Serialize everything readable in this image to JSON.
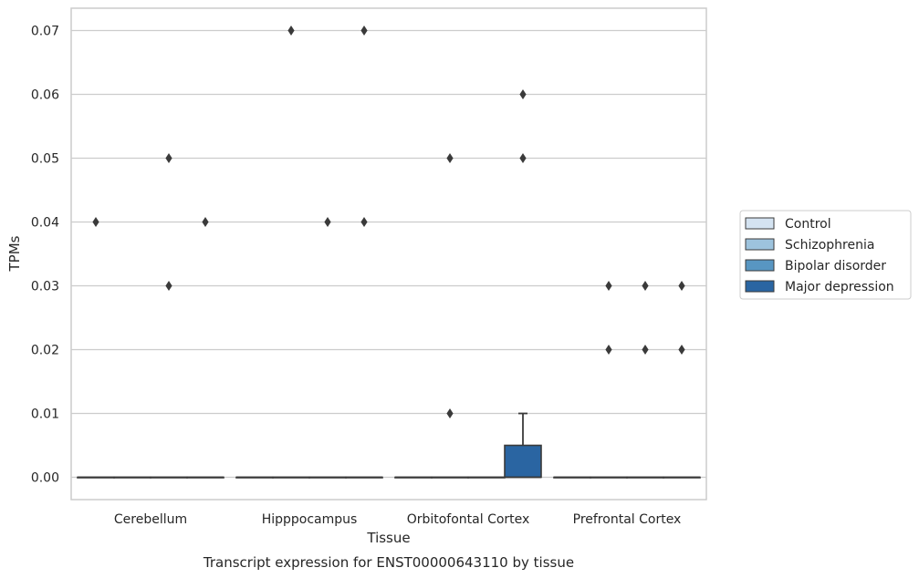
{
  "caption": "Transcript expression for ENST00000643110 by tissue",
  "chart_data": {
    "type": "box",
    "title": "",
    "xlabel": "Tissue",
    "ylabel": "TPMs",
    "ylim": [
      -0.0035,
      0.0735
    ],
    "yticks": [
      "0.00",
      "0.01",
      "0.02",
      "0.03",
      "0.04",
      "0.05",
      "0.06",
      "0.07"
    ],
    "grid": "horizontal",
    "legend_position": "right",
    "categories": [
      "Cerebellum",
      "Hipppocampus",
      "Orbitofontal Cortex",
      "Prefrontal Cortex"
    ],
    "series": [
      {
        "name": "Control",
        "color": "#d4e3f1",
        "boxes": [
          {
            "q1": 0,
            "median": 0,
            "q3": 0,
            "whisker_low": 0,
            "whisker_high": 0,
            "outliers": [
              0.04
            ]
          },
          {
            "q1": 0,
            "median": 0,
            "q3": 0,
            "whisker_low": 0,
            "whisker_high": 0,
            "outliers": []
          },
          {
            "q1": 0,
            "median": 0,
            "q3": 0,
            "whisker_low": 0,
            "whisker_high": 0,
            "outliers": []
          },
          {
            "q1": 0,
            "median": 0,
            "q3": 0,
            "whisker_low": 0,
            "whisker_high": 0,
            "outliers": []
          }
        ]
      },
      {
        "name": "Schizophrenia",
        "color": "#9dc3dd",
        "boxes": [
          {
            "q1": 0,
            "median": 0,
            "q3": 0,
            "whisker_low": 0,
            "whisker_high": 0,
            "outliers": []
          },
          {
            "q1": 0,
            "median": 0,
            "q3": 0,
            "whisker_low": 0,
            "whisker_high": 0,
            "outliers": [
              0.07
            ]
          },
          {
            "q1": 0,
            "median": 0,
            "q3": 0,
            "whisker_low": 0,
            "whisker_high": 0,
            "outliers": [
              0.05,
              0.01
            ]
          },
          {
            "q1": 0,
            "median": 0,
            "q3": 0,
            "whisker_low": 0,
            "whisker_high": 0,
            "outliers": [
              0.03,
              0.02
            ]
          }
        ]
      },
      {
        "name": "Bipolar disorder",
        "color": "#5896c2",
        "boxes": [
          {
            "q1": 0,
            "median": 0,
            "q3": 0,
            "whisker_low": 0,
            "whisker_high": 0,
            "outliers": [
              0.05,
              0.03
            ]
          },
          {
            "q1": 0,
            "median": 0,
            "q3": 0,
            "whisker_low": 0,
            "whisker_high": 0,
            "outliers": [
              0.04
            ]
          },
          {
            "q1": 0,
            "median": 0,
            "q3": 0,
            "whisker_low": 0,
            "whisker_high": 0,
            "outliers": []
          },
          {
            "q1": 0,
            "median": 0,
            "q3": 0,
            "whisker_low": 0,
            "whisker_high": 0,
            "outliers": [
              0.03,
              0.02
            ]
          }
        ]
      },
      {
        "name": "Major depression",
        "color": "#2a65a2",
        "boxes": [
          {
            "q1": 0,
            "median": 0,
            "q3": 0,
            "whisker_low": 0,
            "whisker_high": 0,
            "outliers": [
              0.04
            ]
          },
          {
            "q1": 0,
            "median": 0,
            "q3": 0,
            "whisker_low": 0,
            "whisker_high": 0,
            "outliers": [
              0.07,
              0.04
            ]
          },
          {
            "q1": 0,
            "median": 0,
            "q3": 0.005,
            "whisker_low": 0,
            "whisker_high": 0.01,
            "outliers": [
              0.06,
              0.05
            ]
          },
          {
            "q1": 0,
            "median": 0,
            "q3": 0,
            "whisker_low": 0,
            "whisker_high": 0,
            "outliers": [
              0.03,
              0.02
            ]
          }
        ]
      }
    ]
  }
}
